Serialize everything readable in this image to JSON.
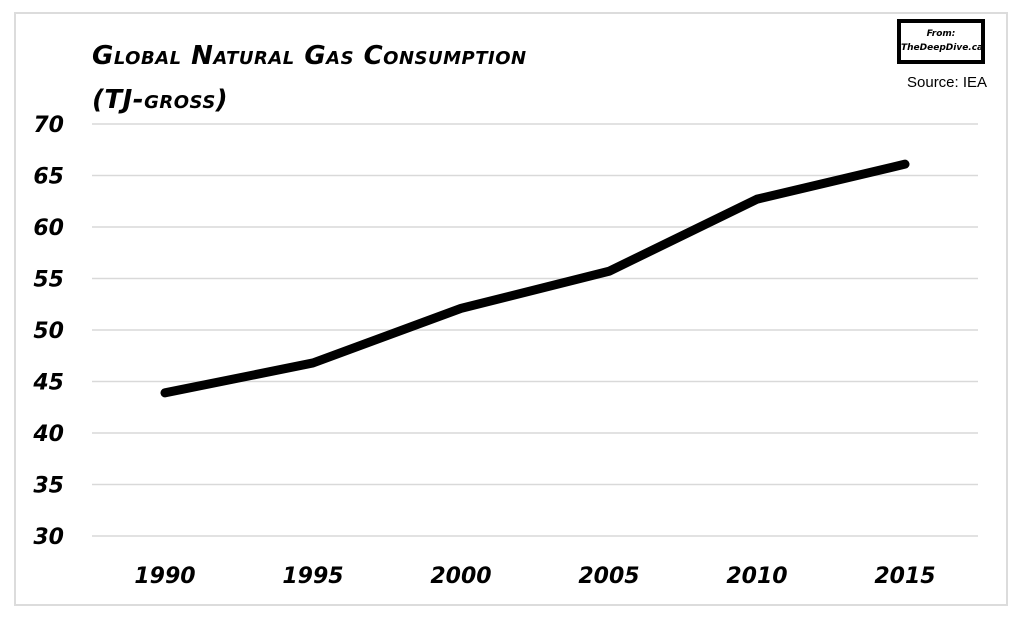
{
  "chart_data": {
    "type": "line",
    "title": "Global Natural Gas Consumption",
    "subtitle": "(TJ-gross)",
    "xlabel": "",
    "ylabel": "",
    "x": [
      1990,
      1995,
      2000,
      2005,
      2010,
      2015
    ],
    "categories": [
      "1990",
      "1995",
      "2000",
      "2005",
      "2010",
      "2015"
    ],
    "series": [
      {
        "name": "Global Natural Gas Consumption",
        "values": [
          43.9,
          46.8,
          52.1,
          55.7,
          62.7,
          66.1
        ],
        "color": "#000000"
      }
    ],
    "ylim": [
      30,
      70
    ],
    "yticks": [
      30,
      35,
      40,
      45,
      50,
      55,
      60,
      65,
      70
    ],
    "grid": true,
    "legend": "none",
    "annotations": {
      "badge_line1": "From:",
      "badge_line2": "TheDeepDive.ca",
      "source": "Source: IEA"
    }
  },
  "colors": {
    "line": "#000000",
    "grid": "#d9d9d9",
    "frame": "#dcdcdc"
  }
}
